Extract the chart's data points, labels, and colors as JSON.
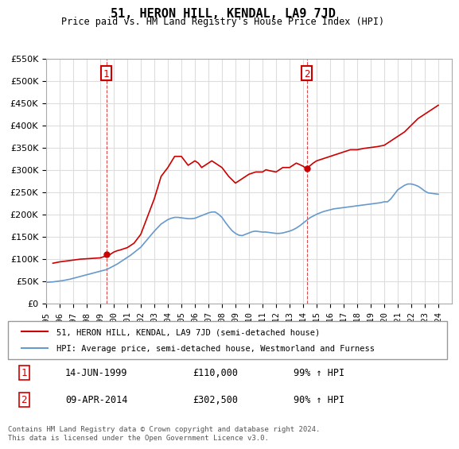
{
  "title": "51, HERON HILL, KENDAL, LA9 7JD",
  "subtitle": "Price paid vs. HM Land Registry's House Price Index (HPI)",
  "ylabel": "",
  "ylim": [
    0,
    550000
  ],
  "yticks": [
    0,
    50000,
    100000,
    150000,
    200000,
    250000,
    300000,
    350000,
    400000,
    450000,
    500000,
    550000
  ],
  "xlim_start": 1995.0,
  "xlim_end": 2025.0,
  "background_color": "#ffffff",
  "grid_color": "#dddddd",
  "red_color": "#cc0000",
  "blue_color": "#6699cc",
  "marker1_x": 1999.45,
  "marker1_y": 110000,
  "marker1_label": "1",
  "marker2_x": 2014.27,
  "marker2_y": 302500,
  "marker2_label": "2",
  "legend_line1": "51, HERON HILL, KENDAL, LA9 7JD (semi-detached house)",
  "legend_line2": "HPI: Average price, semi-detached house, Westmorland and Furness",
  "table_row1_num": "1",
  "table_row1_date": "14-JUN-1999",
  "table_row1_price": "£110,000",
  "table_row1_hpi": "99% ↑ HPI",
  "table_row2_num": "2",
  "table_row2_date": "09-APR-2014",
  "table_row2_price": "£302,500",
  "table_row2_hpi": "90% ↑ HPI",
  "footnote": "Contains HM Land Registry data © Crown copyright and database right 2024.\nThis data is licensed under the Open Government Licence v3.0.",
  "hpi_x": [
    1995.0,
    1995.25,
    1995.5,
    1995.75,
    1996.0,
    1996.25,
    1996.5,
    1996.75,
    1997.0,
    1997.25,
    1997.5,
    1997.75,
    1998.0,
    1998.25,
    1998.5,
    1998.75,
    1999.0,
    1999.25,
    1999.5,
    1999.75,
    2000.0,
    2000.25,
    2000.5,
    2000.75,
    2001.0,
    2001.25,
    2001.5,
    2001.75,
    2002.0,
    2002.25,
    2002.5,
    2002.75,
    2003.0,
    2003.25,
    2003.5,
    2003.75,
    2004.0,
    2004.25,
    2004.5,
    2004.75,
    2005.0,
    2005.25,
    2005.5,
    2005.75,
    2006.0,
    2006.25,
    2006.5,
    2006.75,
    2007.0,
    2007.25,
    2007.5,
    2007.75,
    2008.0,
    2008.25,
    2008.5,
    2008.75,
    2009.0,
    2009.25,
    2009.5,
    2009.75,
    2010.0,
    2010.25,
    2010.5,
    2010.75,
    2011.0,
    2011.25,
    2011.5,
    2011.75,
    2012.0,
    2012.25,
    2012.5,
    2012.75,
    2013.0,
    2013.25,
    2013.5,
    2013.75,
    2014.0,
    2014.25,
    2014.5,
    2014.75,
    2015.0,
    2015.25,
    2015.5,
    2015.75,
    2016.0,
    2016.25,
    2016.5,
    2016.75,
    2017.0,
    2017.25,
    2017.5,
    2017.75,
    2018.0,
    2018.25,
    2018.5,
    2018.75,
    2019.0,
    2019.25,
    2019.5,
    2019.75,
    2020.0,
    2020.25,
    2020.5,
    2020.75,
    2021.0,
    2021.25,
    2021.5,
    2021.75,
    2022.0,
    2022.25,
    2022.5,
    2022.75,
    2023.0,
    2023.25,
    2023.5,
    2023.75,
    2024.0
  ],
  "hpi_y": [
    47000,
    47500,
    48000,
    49000,
    50000,
    51000,
    52500,
    54000,
    56000,
    58000,
    60000,
    62000,
    64000,
    66000,
    68000,
    70000,
    72000,
    74000,
    76000,
    80000,
    84000,
    88000,
    93000,
    98000,
    103000,
    108000,
    114000,
    120000,
    126000,
    135000,
    144000,
    153000,
    162000,
    170000,
    178000,
    183000,
    188000,
    191000,
    193000,
    193000,
    192000,
    191000,
    190000,
    190000,
    191000,
    194000,
    197000,
    200000,
    203000,
    205000,
    205000,
    200000,
    193000,
    182000,
    172000,
    163000,
    157000,
    153000,
    152000,
    155000,
    158000,
    161000,
    162000,
    161000,
    160000,
    160000,
    159000,
    158000,
    157000,
    157000,
    158000,
    160000,
    162000,
    165000,
    169000,
    174000,
    180000,
    186000,
    192000,
    196000,
    200000,
    203000,
    206000,
    208000,
    210000,
    212000,
    213000,
    214000,
    215000,
    216000,
    217000,
    218000,
    219000,
    220000,
    221000,
    222000,
    223000,
    224000,
    225000,
    226000,
    228000,
    228000,
    235000,
    245000,
    255000,
    260000,
    265000,
    268000,
    268000,
    266000,
    263000,
    258000,
    252000,
    248000,
    247000,
    246000,
    245000
  ],
  "price_x": [
    1995.5,
    1996.0,
    1996.5,
    1997.0,
    1997.5,
    1998.0,
    1998.5,
    1999.0,
    1999.5,
    1999.75,
    2000.0,
    2000.25,
    2000.5,
    2001.0,
    2001.5,
    2002.0,
    2002.5,
    2003.0,
    2003.5,
    2004.0,
    2004.5,
    2005.0,
    2005.25,
    2005.5,
    2006.0,
    2006.25,
    2006.5,
    2007.0,
    2007.25,
    2007.75,
    2008.0,
    2008.25,
    2008.5,
    2009.0,
    2009.5,
    2010.0,
    2010.5,
    2011.0,
    2011.25,
    2011.5,
    2012.0,
    2012.25,
    2012.5,
    2013.0,
    2013.5,
    2014.0,
    2014.25,
    2014.75,
    2015.0,
    2015.5,
    2016.0,
    2016.5,
    2017.0,
    2017.5,
    2018.0,
    2018.5,
    2019.0,
    2019.5,
    2020.0,
    2020.5,
    2021.0,
    2021.5,
    2022.0,
    2022.5,
    2023.0,
    2023.5,
    2024.0
  ],
  "price_y": [
    90000,
    93000,
    95000,
    97000,
    99000,
    100000,
    101000,
    102000,
    107000,
    110000,
    115000,
    118000,
    120000,
    125000,
    135000,
    155000,
    195000,
    235000,
    285000,
    305000,
    330000,
    330000,
    320000,
    310000,
    320000,
    315000,
    305000,
    315000,
    320000,
    310000,
    305000,
    295000,
    285000,
    270000,
    280000,
    290000,
    295000,
    295000,
    300000,
    298000,
    295000,
    300000,
    305000,
    305000,
    315000,
    308000,
    302500,
    315000,
    320000,
    325000,
    330000,
    335000,
    340000,
    345000,
    345000,
    348000,
    350000,
    352000,
    355000,
    365000,
    375000,
    385000,
    400000,
    415000,
    425000,
    435000,
    445000
  ]
}
